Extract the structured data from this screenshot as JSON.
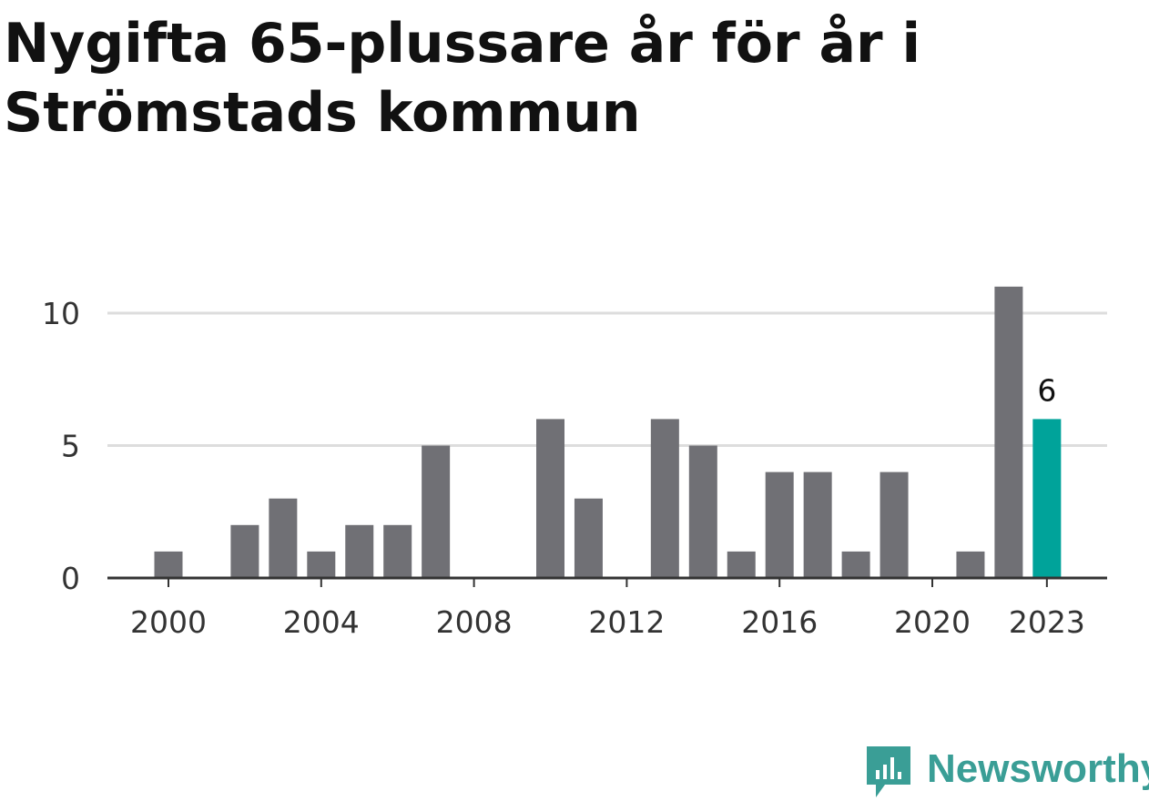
{
  "title": "Nygifta 65-plussare år för år i Strömstads kommun",
  "brand": {
    "name": "Newsworthy",
    "icon": "newsworthy-logo-icon"
  },
  "colors": {
    "bar": "#707075",
    "highlight": "#00a39a",
    "grid": "#dddddd",
    "axis": "#333333",
    "text": "#333333"
  },
  "chart_data": {
    "type": "bar",
    "x": [
      2000,
      2001,
      2002,
      2003,
      2004,
      2005,
      2006,
      2007,
      2008,
      2009,
      2010,
      2011,
      2012,
      2013,
      2014,
      2015,
      2016,
      2017,
      2018,
      2019,
      2020,
      2021,
      2022,
      2023
    ],
    "values": [
      1,
      0,
      2,
      3,
      1,
      2,
      2,
      5,
      0,
      0,
      6,
      3,
      0,
      6,
      5,
      1,
      4,
      4,
      1,
      4,
      0,
      1,
      11,
      6
    ],
    "x_tick_labels": [
      "2000",
      "2004",
      "2008",
      "2012",
      "2016",
      "2020",
      "2023"
    ],
    "y_tick_labels": [
      "0",
      "5",
      "10"
    ],
    "ylim": [
      0,
      11
    ],
    "highlight": {
      "x": 2023,
      "label": "6"
    },
    "grid": true
  }
}
